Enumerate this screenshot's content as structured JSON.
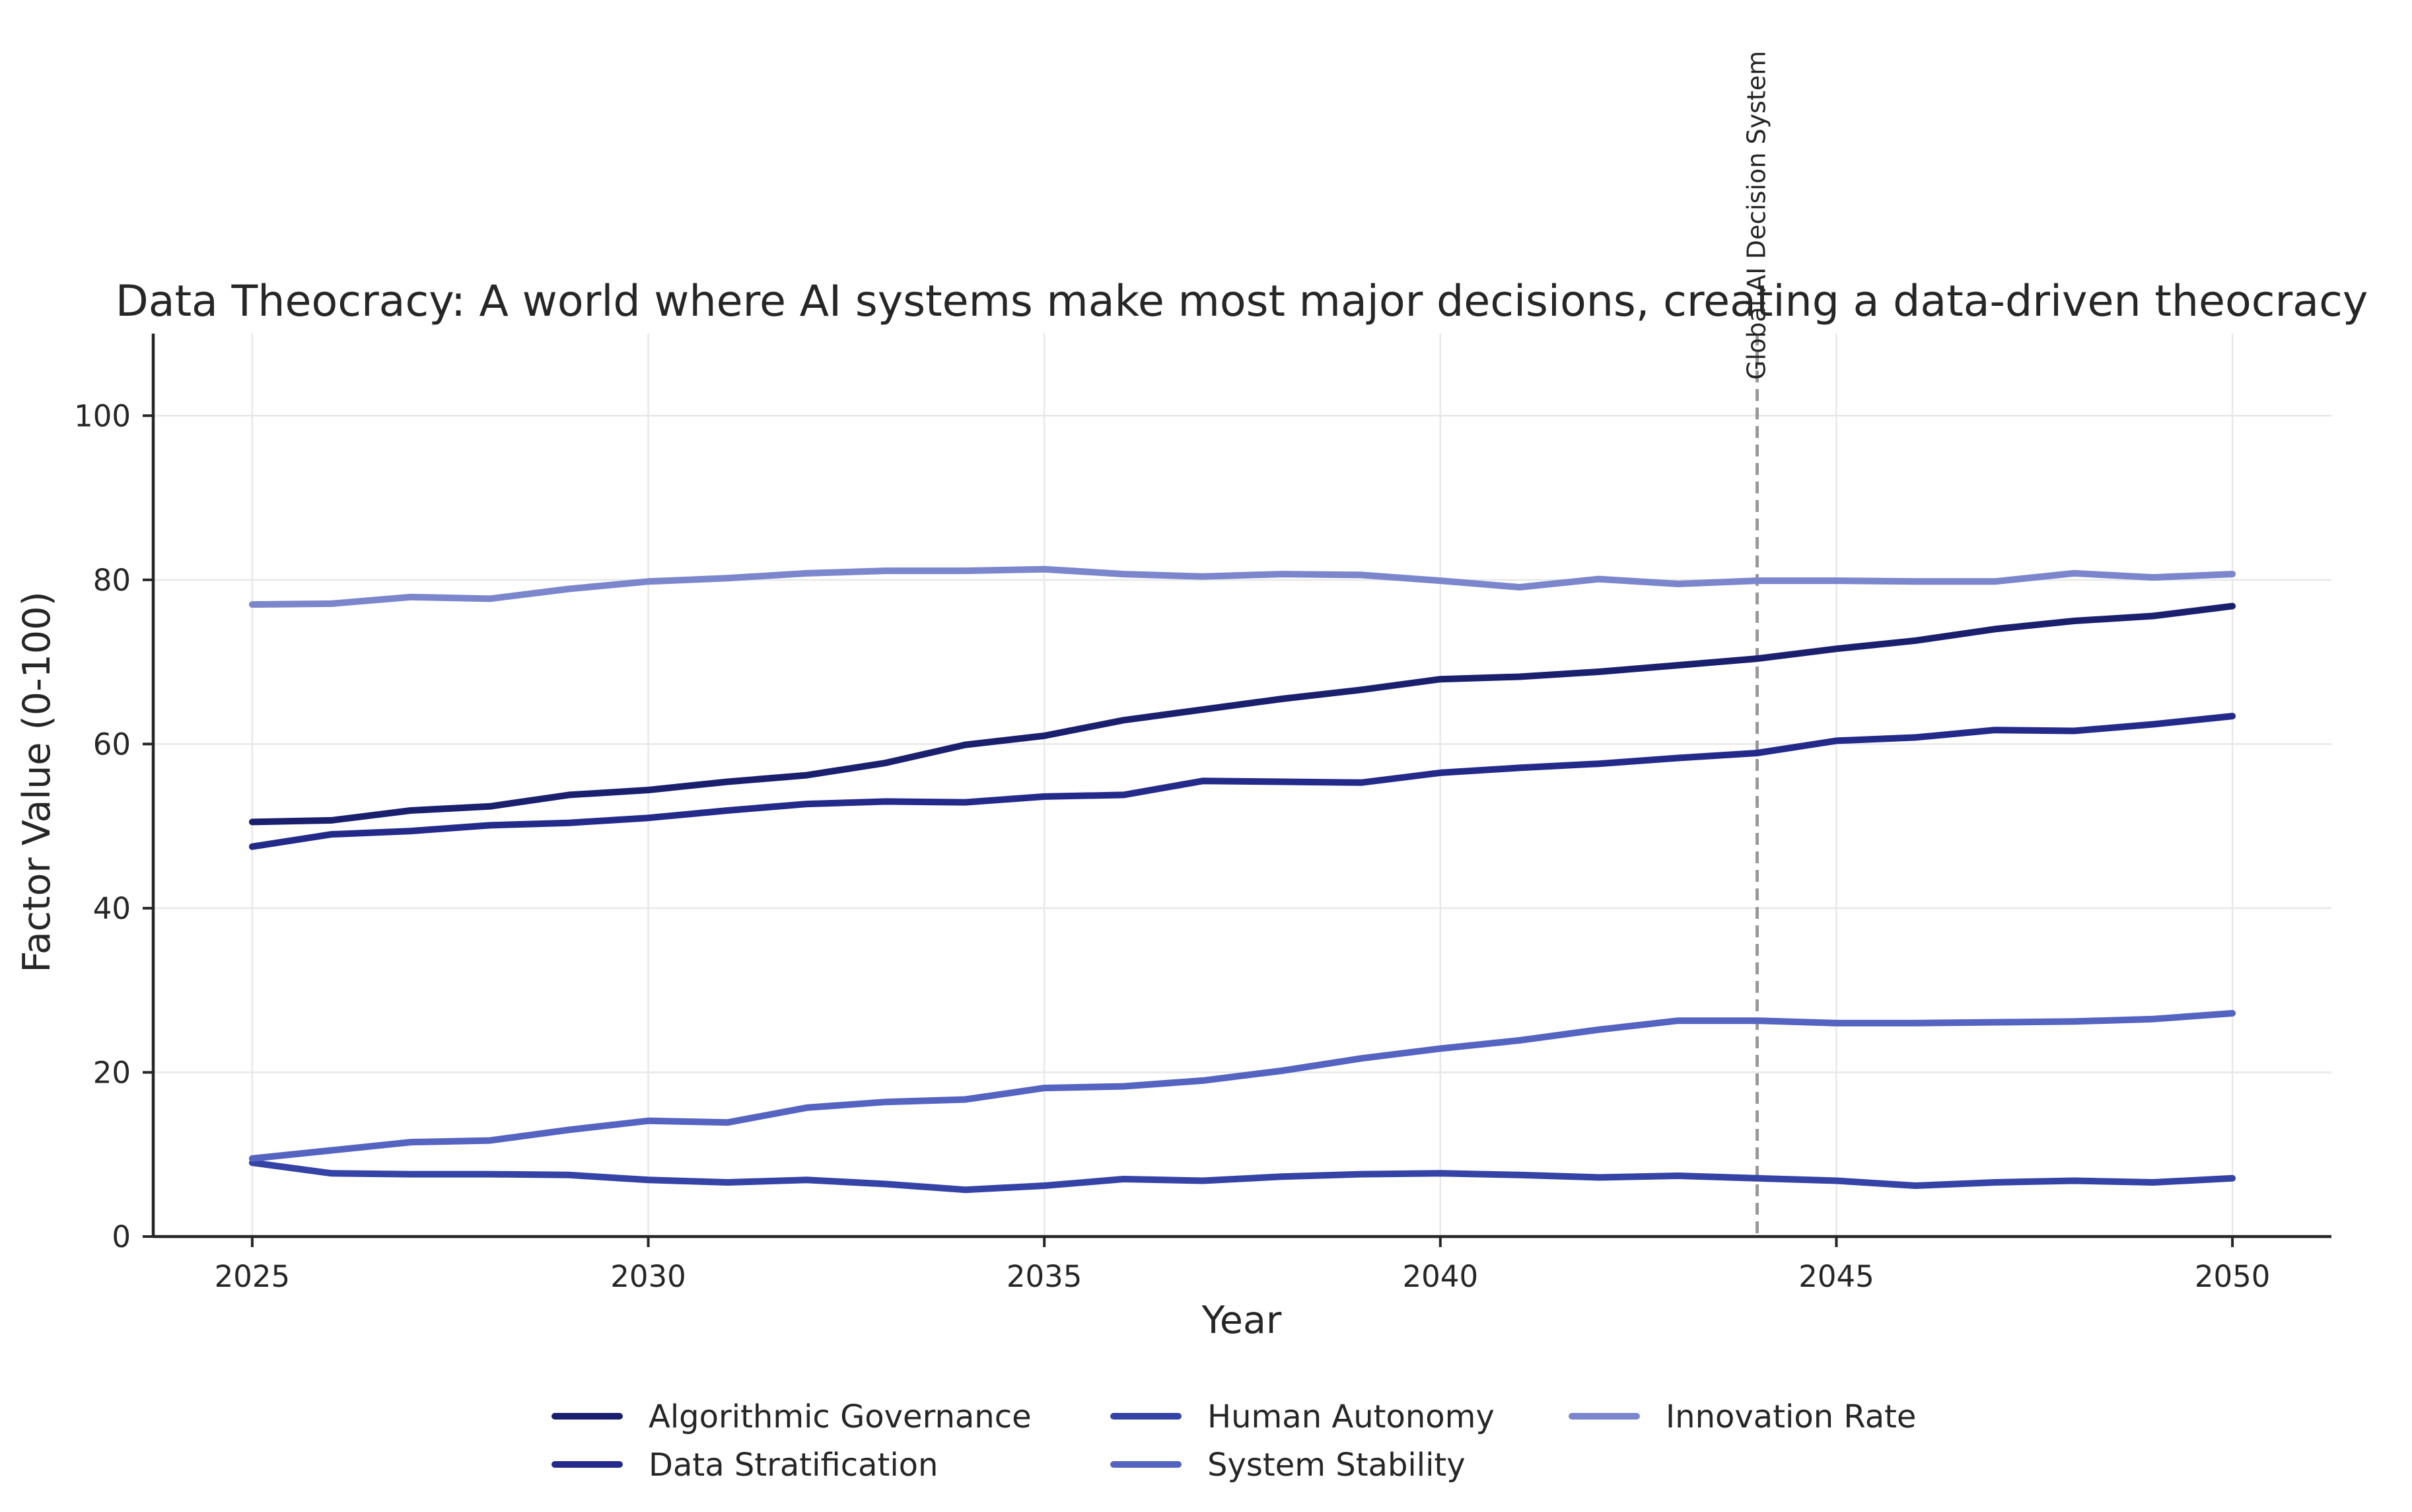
{
  "chart_data": {
    "type": "line",
    "title": "Data Theocracy: A world where AI systems make most major decisions, creating a data-driven theocracy",
    "xlabel": "Year",
    "ylabel": "Factor Value (0-100)",
    "xlim": [
      2023.75,
      2051.25
    ],
    "ylim": [
      0,
      110
    ],
    "xticks": [
      2025,
      2030,
      2035,
      2040,
      2045,
      2050
    ],
    "yticks": [
      0,
      20,
      40,
      60,
      80,
      100
    ],
    "grid": true,
    "legend_position": "bottom-center",
    "x": [
      2025,
      2026,
      2027,
      2028,
      2029,
      2030,
      2031,
      2032,
      2033,
      2034,
      2035,
      2036,
      2037,
      2038,
      2039,
      2040,
      2041,
      2042,
      2043,
      2044,
      2045,
      2046,
      2047,
      2048,
      2049,
      2050
    ],
    "series": [
      {
        "name": "Algorithmic Governance",
        "color": "#1a1f6e",
        "values": [
          50.5,
          50.7,
          51.9,
          52.4,
          53.8,
          54.4,
          55.4,
          56.2,
          57.7,
          59.9,
          61.0,
          62.9,
          64.2,
          65.5,
          66.6,
          67.9,
          68.2,
          68.8,
          69.6,
          70.4,
          71.6,
          72.6,
          74.0,
          75.0,
          75.6,
          76.8
        ]
      },
      {
        "name": "Data Stratification",
        "color": "#232a8a",
        "values": [
          47.5,
          49.0,
          49.4,
          50.1,
          50.4,
          51.0,
          51.9,
          52.7,
          53.0,
          52.9,
          53.6,
          53.8,
          55.5,
          55.4,
          55.3,
          56.5,
          57.1,
          57.6,
          58.3,
          58.9,
          60.4,
          60.8,
          61.7,
          61.6,
          62.4,
          63.4
        ]
      },
      {
        "name": "Human Autonomy",
        "color": "#3443a5",
        "values": [
          9.0,
          7.7,
          7.6,
          7.6,
          7.5,
          6.9,
          6.6,
          6.9,
          6.4,
          5.7,
          6.2,
          7.0,
          6.8,
          7.3,
          7.6,
          7.7,
          7.5,
          7.2,
          7.4,
          7.1,
          6.8,
          6.2,
          6.6,
          6.8,
          6.6,
          7.1
        ]
      },
      {
        "name": "System Stability",
        "color": "#5563c1",
        "values": [
          9.5,
          10.5,
          11.5,
          11.7,
          13.0,
          14.1,
          13.9,
          15.7,
          16.4,
          16.7,
          18.1,
          18.3,
          19.0,
          20.2,
          21.7,
          22.9,
          23.9,
          25.2,
          26.3,
          26.3,
          26.0,
          26.0,
          26.1,
          26.2,
          26.5,
          27.2
        ]
      },
      {
        "name": "Innovation Rate",
        "color": "#7b86cc",
        "values": [
          77.0,
          77.1,
          77.9,
          77.7,
          78.9,
          79.8,
          80.2,
          80.8,
          81.1,
          81.1,
          81.3,
          80.7,
          80.4,
          80.7,
          80.6,
          79.9,
          79.1,
          80.1,
          79.5,
          79.9,
          79.9,
          79.8,
          79.8,
          80.8,
          80.3,
          80.7
        ]
      }
    ],
    "annotations": [
      {
        "type": "vline",
        "x": 2044,
        "text": "Global AI Decision System",
        "color": "#999999"
      }
    ]
  }
}
